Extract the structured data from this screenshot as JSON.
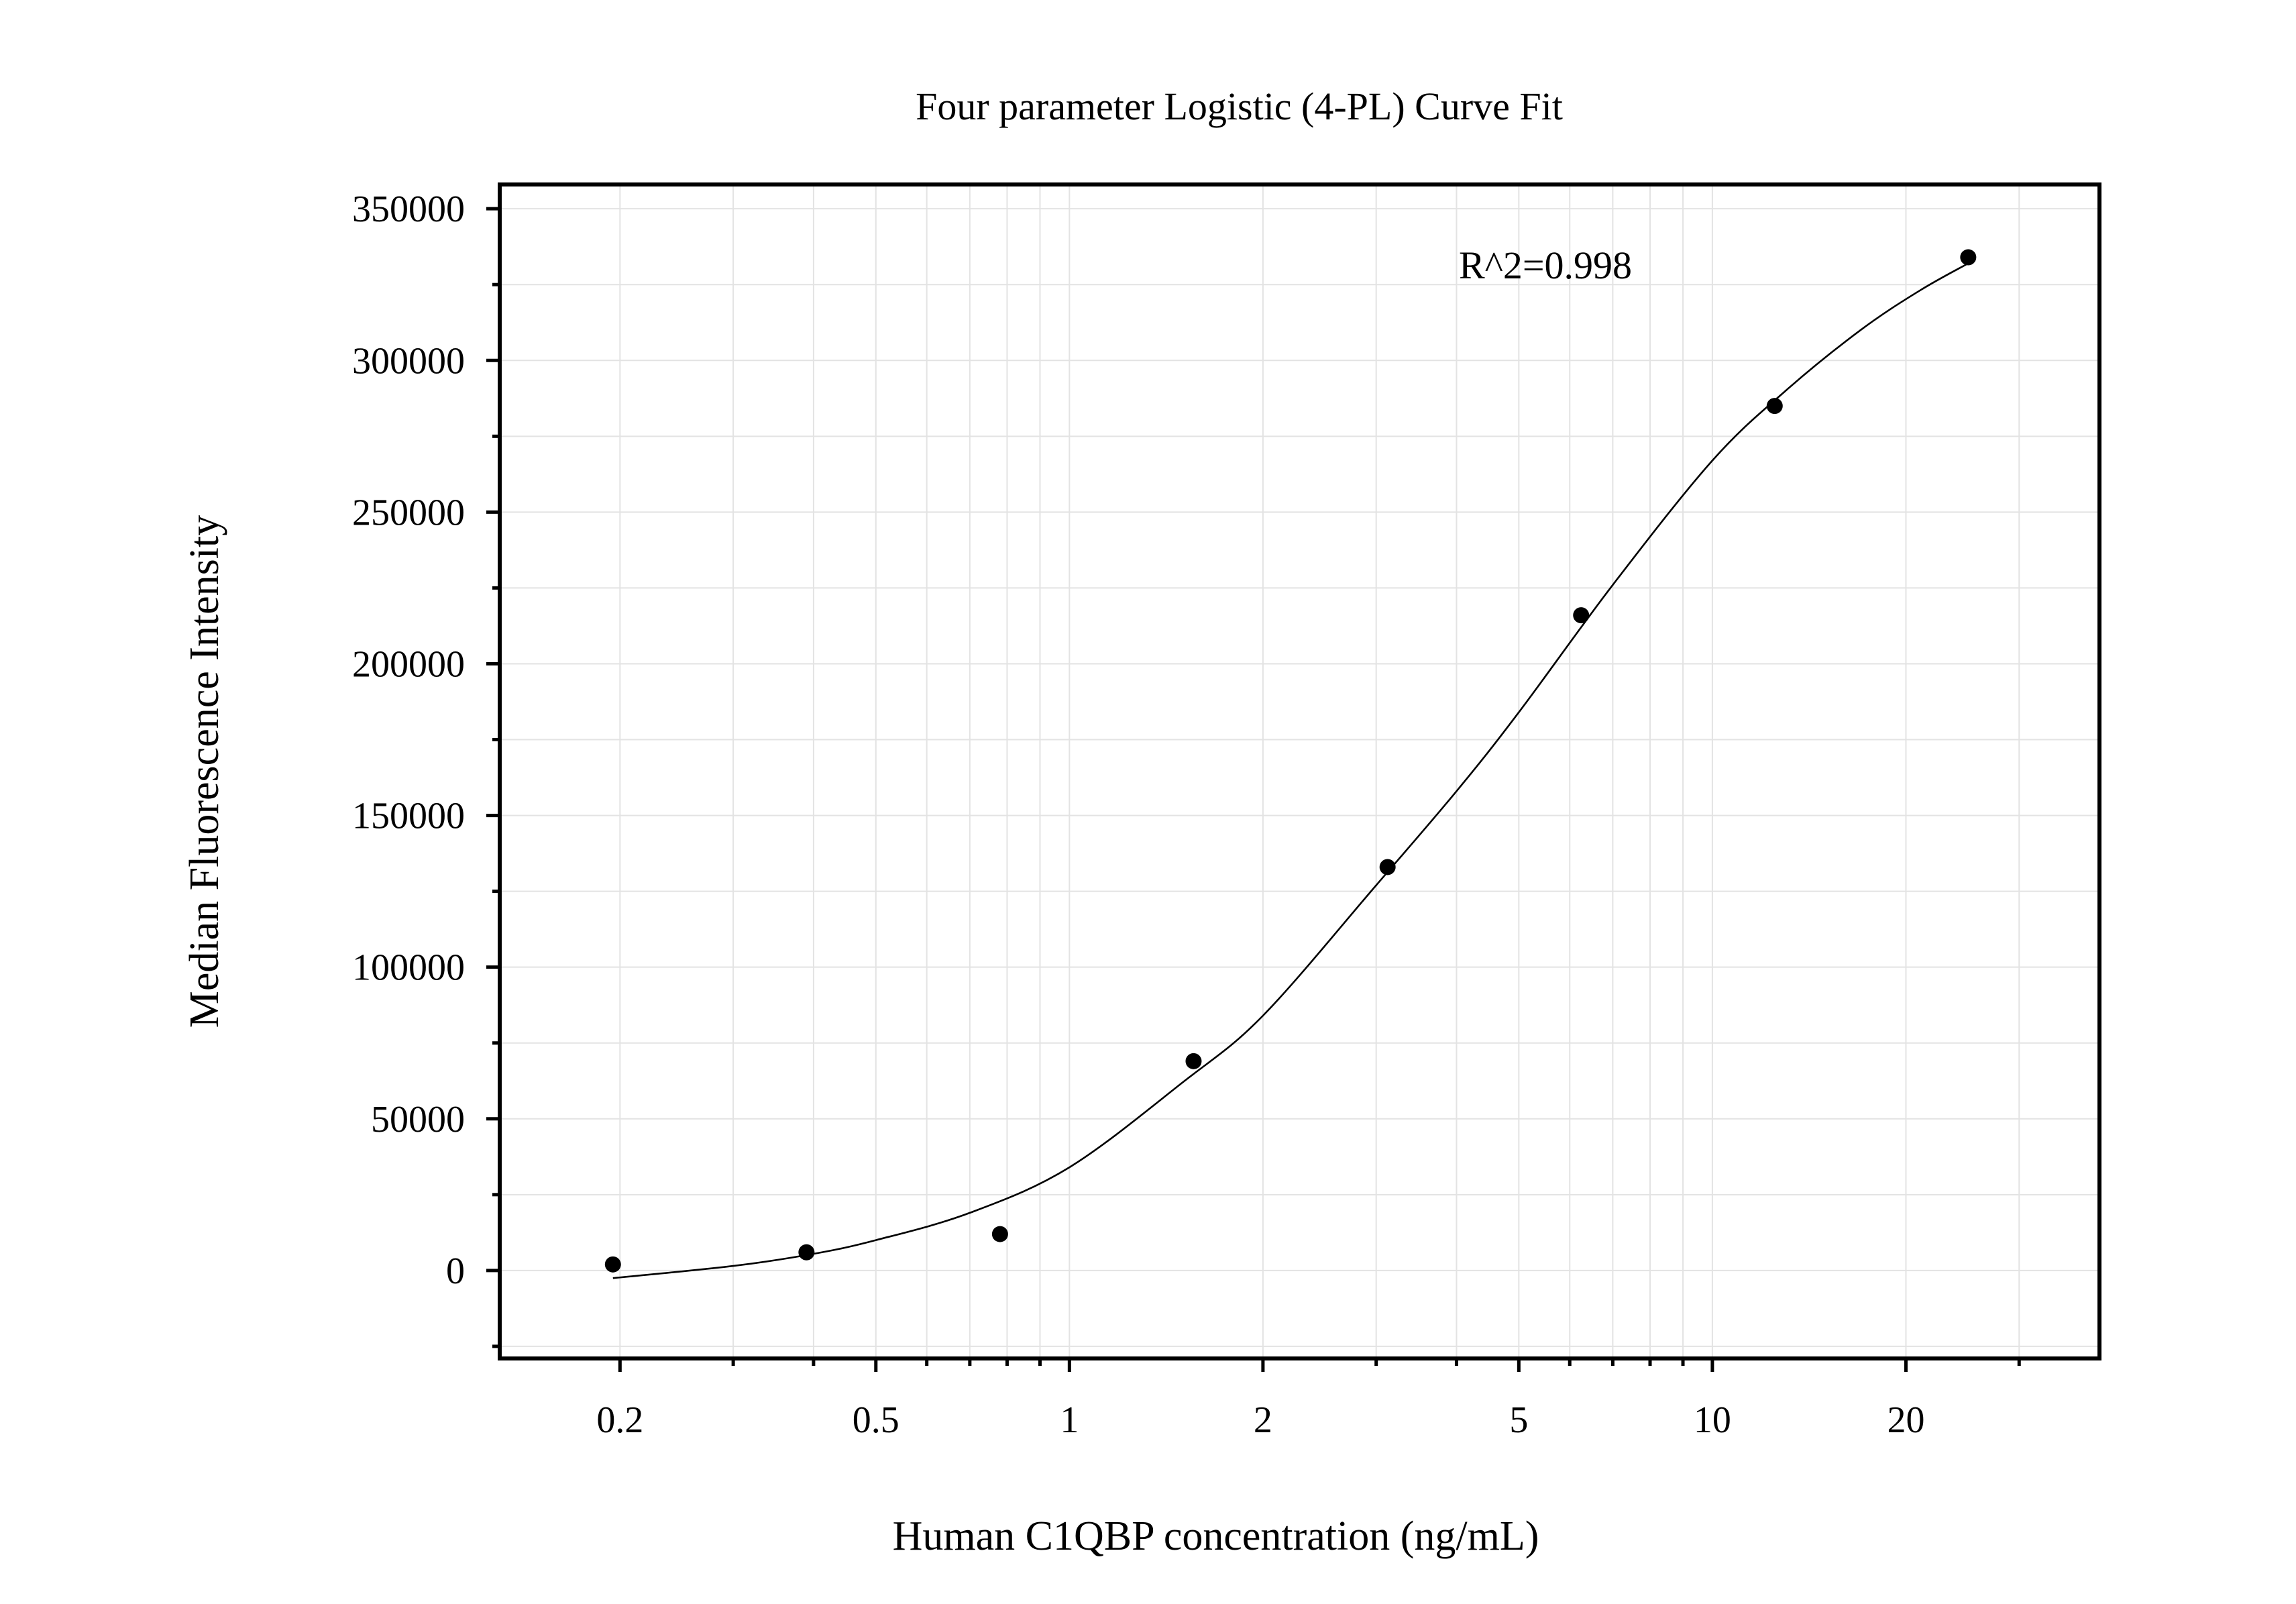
{
  "chart_data": {
    "type": "scatter",
    "title": "Four parameter Logistic (4-PL) Curve Fit",
    "xlabel": "Human C1QBP concentration (ng/mL)",
    "ylabel": "Median Fluorescence Intensity",
    "x_scale": "log",
    "xlim": [
      0.13,
      40
    ],
    "ylim": [
      -29000,
      358000
    ],
    "grid": true,
    "x_ticks": [
      {
        "value": 0.2,
        "label": "0.2"
      },
      {
        "value": 0.5,
        "label": "0.5"
      },
      {
        "value": 1,
        "label": "1"
      },
      {
        "value": 2,
        "label": "2"
      },
      {
        "value": 5,
        "label": "5"
      },
      {
        "value": 10,
        "label": "10"
      },
      {
        "value": 20,
        "label": "20"
      }
    ],
    "y_ticks": [
      {
        "value": 0,
        "label": "0"
      },
      {
        "value": 50000,
        "label": "50000"
      },
      {
        "value": 100000,
        "label": "100000"
      },
      {
        "value": 150000,
        "label": "150000"
      },
      {
        "value": 200000,
        "label": "200000"
      },
      {
        "value": 250000,
        "label": "250000"
      },
      {
        "value": 300000,
        "label": "300000"
      },
      {
        "value": 350000,
        "label": "350000"
      }
    ],
    "points": [
      {
        "x": 0.195,
        "y": 2000
      },
      {
        "x": 0.39,
        "y": 6000
      },
      {
        "x": 0.78,
        "y": 12000
      },
      {
        "x": 1.56,
        "y": 69000
      },
      {
        "x": 3.125,
        "y": 133000
      },
      {
        "x": 6.25,
        "y": 216000
      },
      {
        "x": 12.5,
        "y": 285000
      },
      {
        "x": 25,
        "y": 334000
      }
    ],
    "fit_curve": [
      {
        "x": 0.195,
        "y": -2500
      },
      {
        "x": 0.3,
        "y": 1500
      },
      {
        "x": 0.4,
        "y": 5500
      },
      {
        "x": 0.5,
        "y": 10000
      },
      {
        "x": 0.7,
        "y": 19000
      },
      {
        "x": 1,
        "y": 34000
      },
      {
        "x": 1.5,
        "y": 62000
      },
      {
        "x": 2,
        "y": 84000
      },
      {
        "x": 3,
        "y": 127000
      },
      {
        "x": 4,
        "y": 158000
      },
      {
        "x": 5,
        "y": 184000
      },
      {
        "x": 7,
        "y": 226000
      },
      {
        "x": 10,
        "y": 267000
      },
      {
        "x": 13,
        "y": 290000
      },
      {
        "x": 17,
        "y": 310000
      },
      {
        "x": 21,
        "y": 323000
      },
      {
        "x": 25,
        "y": 332000
      }
    ],
    "annotations": [
      {
        "text": "R^2=0.998",
        "x": 5.5,
        "y": 327000
      }
    ]
  }
}
